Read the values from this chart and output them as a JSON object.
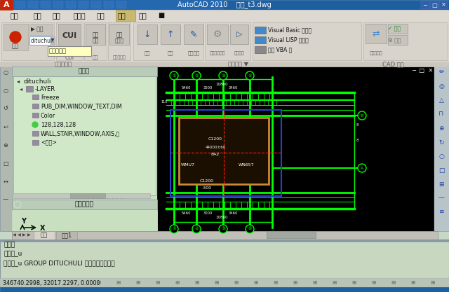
{
  "title": "AutoCAD 2010    新块_t3.dwg",
  "window_bg": "#c8d8c8",
  "titlebar_bg": "#1e5fa0",
  "menubar_bg": "#ddd9d0",
  "ribbon_bg": "#e0dbd0",
  "panel_left_bg": "#d8ead8",
  "canvas_bg": "#000000",
  "tree_bg": "#c8e0c0",
  "tree_title_bg": "#b8ccb8",
  "cmd_bg": "#c8d8c0",
  "statusbar_bg": "#c0c8c0",
  "menu_items": [
    "常用",
    "插入",
    "注释",
    "参数化",
    "视图",
    "管理",
    "插出"
  ],
  "active_menu": "管理",
  "action_tree_title": "动作树",
  "action_recorder_title": "动作录制器",
  "tree_root": "dituchuli",
  "tree_items": [
    "-LAYER",
    "Freeze",
    "PUB_DIM,WINDOW_TEXT,DIM",
    "Color",
    "128,128,128",
    "WALL,STAIR,WINDOW,AXIS,墙",
    "<输入>"
  ],
  "command_lines": [
    "命令：_u GROUP DITUCHULI 正在重生成模型。",
    "命令：_u",
    "命令："
  ],
  "statusbar_coords": "346740.2998, 32017.2297, 0.0000",
  "tooltip_text": "可用动作宏",
  "dropdown_text": "dituchuli",
  "cad_green": "#00ff00",
  "cad_blue_rect": "#2244cc",
  "cad_orange_rect": "#cc8833",
  "cad_red_line": "#ff2200",
  "cad_white_text": "#ffffff",
  "cad_cyan_text": "#00ffff"
}
